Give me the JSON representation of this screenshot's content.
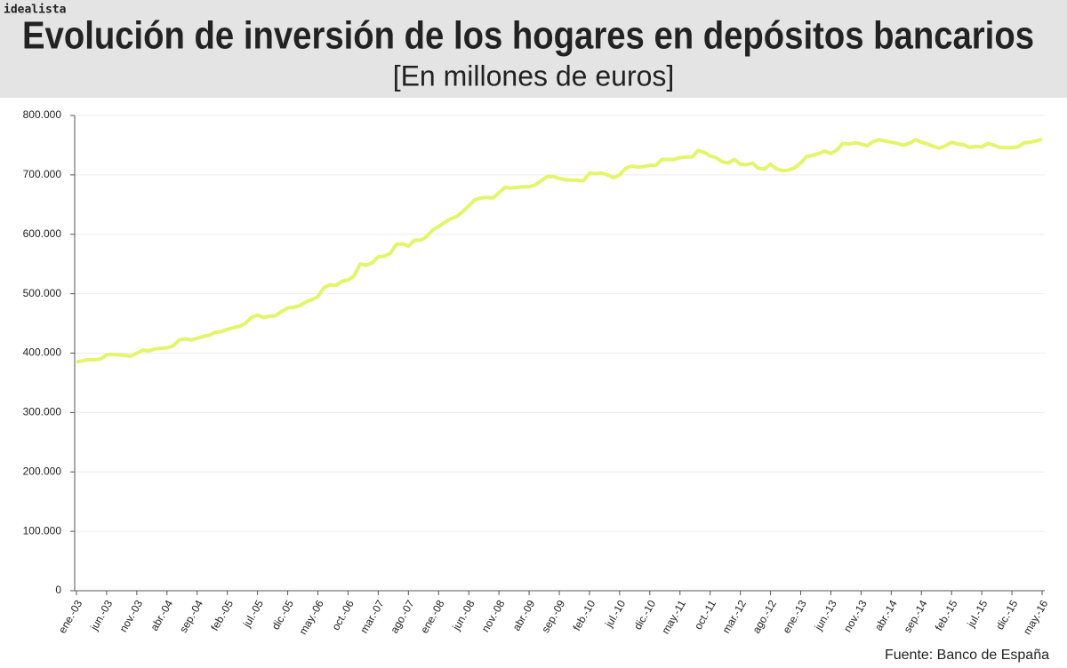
{
  "brand": "idealista",
  "chart_data": {
    "type": "line",
    "title": "Evolución de inversión de los hogares en depósitos bancarios",
    "subtitle": "[En millones de euros]",
    "source": "Fuente: Banco de España",
    "color": "#e3f56a",
    "grid": true,
    "ylim": [
      0,
      800000
    ],
    "yticks": [
      0,
      {
        "value": 100000,
        "label": "100.000"
      },
      {
        "value": 200000,
        "label": "200.000"
      },
      {
        "value": 300000,
        "label": "300.000"
      },
      {
        "value": 400000,
        "label": "400.000"
      },
      {
        "value": 500000,
        "label": "500.000"
      },
      {
        "value": 600000,
        "label": "600.000"
      },
      {
        "value": 700000,
        "label": "700.000"
      },
      {
        "value": 800000,
        "label": "800.000"
      }
    ],
    "categories": [
      "ene.-03",
      null,
      null,
      null,
      null,
      "jun.-03",
      null,
      null,
      null,
      null,
      "nov.-03",
      null,
      null,
      null,
      null,
      "abr.-04",
      null,
      null,
      null,
      null,
      "sep.-04",
      null,
      null,
      null,
      null,
      "feb.-05",
      null,
      null,
      null,
      null,
      "jul.-05",
      null,
      null,
      null,
      null,
      "dic.-05",
      null,
      null,
      null,
      null,
      "may.-06",
      null,
      null,
      null,
      null,
      "oct.-06",
      null,
      null,
      null,
      null,
      "mar.-07",
      null,
      null,
      null,
      null,
      "ago.-07",
      null,
      null,
      null,
      null,
      "ene.-08",
      null,
      null,
      null,
      null,
      "jun.-08",
      null,
      null,
      null,
      null,
      "nov.-08",
      null,
      null,
      null,
      null,
      "abr.-09",
      null,
      null,
      null,
      null,
      "sep.-09",
      null,
      null,
      null,
      null,
      "feb.-10",
      null,
      null,
      null,
      null,
      "jul.-10",
      null,
      null,
      null,
      null,
      "dic.-10",
      null,
      null,
      null,
      null,
      "may.-11",
      null,
      null,
      null,
      null,
      "oct.-11",
      null,
      null,
      null,
      null,
      "mar.-12",
      null,
      null,
      null,
      null,
      "ago.-12",
      null,
      null,
      null,
      null,
      "ene.-13",
      null,
      null,
      null,
      null,
      "jun.-13",
      null,
      null,
      null,
      null,
      "nov.-13",
      null,
      null,
      null,
      null,
      "abr.-14",
      null,
      null,
      null,
      null,
      "sep.-14",
      null,
      null,
      null,
      null,
      "feb.-15",
      null,
      null,
      null,
      null,
      "jul.-15",
      null,
      null,
      null,
      null,
      "dic.-15",
      null,
      null,
      null,
      null,
      "may.-16"
    ],
    "values": [
      385000,
      387000,
      389000,
      389000,
      390000,
      397000,
      398000,
      397000,
      396000,
      395000,
      400000,
      405000,
      404000,
      407000,
      408000,
      409000,
      412000,
      422000,
      424000,
      422000,
      425000,
      428000,
      430000,
      435000,
      436000,
      440000,
      443000,
      445000,
      450000,
      460000,
      464000,
      460000,
      462000,
      463000,
      470000,
      476000,
      477000,
      480000,
      486000,
      490000,
      495000,
      510000,
      515000,
      514000,
      521000,
      523000,
      530000,
      550000,
      548000,
      552000,
      562000,
      563000,
      568000,
      583000,
      584000,
      580000,
      590000,
      590000,
      596000,
      607000,
      613000,
      620000,
      626000,
      630000,
      638000,
      648000,
      658000,
      661000,
      662000,
      661000,
      670000,
      679000,
      678000,
      679000,
      680000,
      680000,
      683000,
      690000,
      697000,
      697000,
      694000,
      692000,
      691000,
      691000,
      690000,
      703000,
      702000,
      703000,
      700000,
      695000,
      700000,
      711000,
      715000,
      713000,
      714000,
      716000,
      716000,
      726000,
      726000,
      726000,
      729000,
      730000,
      730000,
      741000,
      738000,
      732000,
      729000,
      722000,
      720000,
      726000,
      718000,
      717000,
      720000,
      711000,
      710000,
      718000,
      710000,
      707000,
      708000,
      712000,
      720000,
      731000,
      733000,
      736000,
      740000,
      736000,
      742000,
      753000,
      752000,
      754000,
      752000,
      749000,
      756000,
      759000,
      757000,
      755000,
      753000,
      750000,
      753000,
      759000,
      755000,
      752000,
      748000,
      745000,
      749000,
      755000,
      752000,
      751000,
      746000,
      748000,
      747000,
      753000,
      750000,
      746000,
      746000,
      746000,
      747000,
      754000,
      755000,
      757000,
      760000
    ]
  }
}
